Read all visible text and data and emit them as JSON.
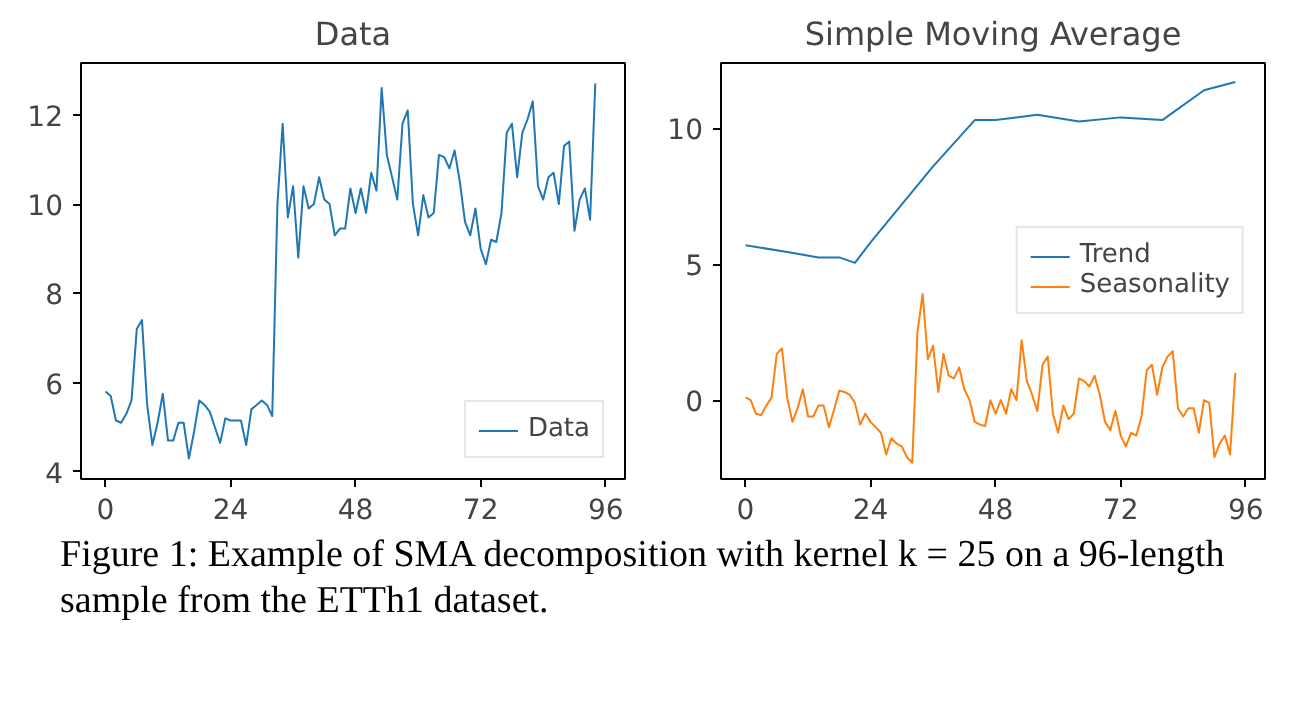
{
  "chart_data": [
    {
      "type": "line",
      "title": "Data",
      "xlim": [
        -4.7,
        99.7
      ],
      "ylim": [
        3.84,
        13.16
      ],
      "xticks": [
        0,
        24,
        48,
        72,
        96
      ],
      "yticks": [
        4,
        6,
        8,
        10,
        12
      ],
      "grid": false,
      "legend": "bottom right",
      "series": [
        {
          "name": "Data",
          "color": "#1f77b4",
          "x": [
            0,
            1,
            2,
            3,
            4,
            5,
            6,
            7,
            8,
            9,
            10,
            11,
            12,
            13,
            14,
            15,
            16,
            17,
            18,
            19,
            20,
            21,
            22,
            23,
            24,
            25,
            26,
            27,
            28,
            29,
            30,
            31,
            32,
            33,
            34,
            35,
            36,
            37,
            38,
            39,
            40,
            41,
            42,
            43,
            44,
            45,
            46,
            47,
            48,
            49,
            50,
            51,
            52,
            53,
            54,
            55,
            56,
            57,
            58,
            59,
            60,
            61,
            62,
            63,
            64,
            65,
            66,
            67,
            68,
            69,
            70,
            71,
            72,
            73,
            74,
            75,
            76,
            77,
            78,
            79,
            80,
            81,
            82,
            83,
            84,
            85,
            86,
            87,
            88,
            89,
            90,
            91,
            92,
            93,
            94
          ],
          "values": [
            5.8,
            5.7,
            5.15,
            5.1,
            5.3,
            5.6,
            7.2,
            7.4,
            5.5,
            4.6,
            5.1,
            5.75,
            4.7,
            4.7,
            5.1,
            5.1,
            4.3,
            4.9,
            5.6,
            5.5,
            5.35,
            5.0,
            4.65,
            5.2,
            5.15,
            5.15,
            5.15,
            4.6,
            5.4,
            5.5,
            5.6,
            5.5,
            5.25,
            10.0,
            11.8,
            9.7,
            10.4,
            8.8,
            10.4,
            9.9,
            10.0,
            10.6,
            10.1,
            10.0,
            9.3,
            9.45,
            9.45,
            10.35,
            9.8,
            10.35,
            9.8,
            10.7,
            10.3,
            12.6,
            11.1,
            10.6,
            10.1,
            11.8,
            12.1,
            10.0,
            9.3,
            10.2,
            9.7,
            9.8,
            11.1,
            11.05,
            10.8,
            11.2,
            10.5,
            9.6,
            9.3,
            9.9,
            9.0,
            8.65,
            9.2,
            9.15,
            9.8,
            11.6,
            11.8,
            10.6,
            11.6,
            11.9,
            12.3,
            10.4,
            10.1,
            10.6,
            10.7,
            10.0,
            11.3,
            11.4,
            9.4,
            10.1,
            10.35,
            9.65,
            12.7
          ]
        }
      ],
      "annotations": [
        "Figure 1: Example of SMA decomposition with kernel k = 25 on a 96-length sample from the ETTh1 dataset."
      ]
    },
    {
      "type": "line",
      "title": "Simple Moving Average",
      "xlim": [
        -4.7,
        99.7
      ],
      "ylim": [
        -2.9,
        12.4
      ],
      "xticks": [
        0,
        24,
        48,
        72,
        96
      ],
      "yticks": [
        0,
        5,
        10
      ],
      "grid": false,
      "legend": "right",
      "series": [
        {
          "name": "Trend",
          "color": "#1f77b4",
          "x": [
            0,
            8,
            14,
            18,
            21,
            24,
            30,
            36,
            44,
            48,
            56,
            64,
            72,
            80,
            88,
            94
          ],
          "values": [
            5.7,
            5.45,
            5.25,
            5.25,
            5.05,
            5.8,
            7.2,
            8.6,
            10.3,
            10.3,
            10.5,
            10.25,
            10.4,
            10.3,
            11.4,
            11.7
          ]
        },
        {
          "name": "Seasonality",
          "color": "#ff7f0e",
          "x": [
            0,
            1,
            2,
            3,
            4,
            5,
            6,
            7,
            8,
            9,
            10,
            11,
            12,
            13,
            14,
            15,
            16,
            17,
            18,
            19,
            20,
            21,
            22,
            23,
            24,
            25,
            26,
            27,
            28,
            29,
            30,
            31,
            32,
            33,
            34,
            35,
            36,
            37,
            38,
            39,
            40,
            41,
            42,
            43,
            44,
            45,
            46,
            47,
            48,
            49,
            50,
            51,
            52,
            53,
            54,
            55,
            56,
            57,
            58,
            59,
            60,
            61,
            62,
            63,
            64,
            65,
            66,
            67,
            68,
            69,
            70,
            71,
            72,
            73,
            74,
            75,
            76,
            77,
            78,
            79,
            80,
            81,
            82,
            83,
            84,
            85,
            86,
            87,
            88,
            89,
            90,
            91,
            92,
            93,
            94
          ],
          "values": [
            0.1,
            0.0,
            -0.5,
            -0.55,
            -0.2,
            0.1,
            1.7,
            1.9,
            0.1,
            -0.8,
            -0.3,
            0.4,
            -0.6,
            -0.6,
            -0.2,
            -0.2,
            -1.0,
            -0.35,
            0.35,
            0.3,
            0.2,
            -0.1,
            -0.9,
            -0.5,
            -0.8,
            -1.0,
            -1.2,
            -2.0,
            -1.4,
            -1.6,
            -1.7,
            -2.1,
            -2.3,
            2.5,
            3.9,
            1.5,
            2.0,
            0.3,
            1.7,
            0.9,
            0.8,
            1.2,
            0.4,
            0.0,
            -0.8,
            -0.9,
            -0.95,
            0.0,
            -0.5,
            0.0,
            -0.5,
            0.4,
            0.0,
            2.2,
            0.7,
            0.2,
            -0.4,
            1.3,
            1.6,
            -0.5,
            -1.2,
            -0.2,
            -0.7,
            -0.5,
            0.8,
            0.7,
            0.5,
            0.9,
            0.2,
            -0.8,
            -1.1,
            -0.4,
            -1.3,
            -1.7,
            -1.2,
            -1.3,
            -0.6,
            1.1,
            1.3,
            0.2,
            1.2,
            1.6,
            1.8,
            -0.3,
            -0.6,
            -0.3,
            -0.3,
            -1.2,
            0.0,
            -0.1,
            -2.1,
            -1.6,
            -1.3,
            -2.0,
            1.0
          ]
        }
      ]
    }
  ]
}
